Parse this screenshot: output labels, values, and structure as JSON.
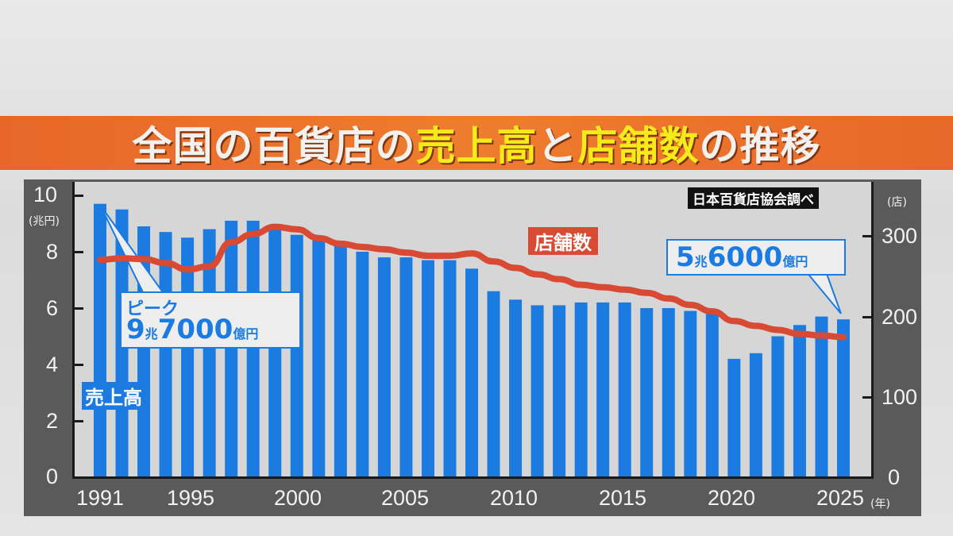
{
  "title": {
    "parts": [
      {
        "text": "全国の百貨店の",
        "color": "white"
      },
      {
        "text": "売上高",
        "color": "yellow"
      },
      {
        "text": "と",
        "color": "white"
      },
      {
        "text": "店舗数",
        "color": "yellow"
      },
      {
        "text": "の推移",
        "color": "white"
      }
    ]
  },
  "source": "日本百貨店協会調べ",
  "axes": {
    "left_unit": "(兆円)",
    "right_unit": "(店)",
    "x_unit": "(年)",
    "left_ticks": [
      "0",
      "2",
      "4",
      "6",
      "8",
      "10"
    ],
    "right_ticks": [
      "0",
      "100",
      "200",
      "300"
    ],
    "x_ticks": [
      "1991",
      "1995",
      "2000",
      "2005",
      "2010",
      "2015",
      "2020",
      "2025"
    ]
  },
  "labels": {
    "sales": "売上高",
    "stores": "店舗数"
  },
  "callouts": {
    "peak_title": "ピーク",
    "peak_num1": "9",
    "peak_unit1": "兆",
    "peak_num2": "7000",
    "peak_unit2": "億円",
    "latest_num1": "5",
    "latest_unit1": "兆",
    "latest_num2": "6000",
    "latest_unit2": "億円"
  },
  "colors": {
    "bar": "#1b7be0",
    "line": "#d84a33",
    "title_band": "#ec772d",
    "title_yellow": "#f5ea1a"
  },
  "chart_data": {
    "type": "bar",
    "title": "全国の百貨店の売上高と店舗数の推移",
    "xlabel": "(年)",
    "ylabel": "売上高 (兆円)",
    "y2label": "店舗数 (店)",
    "ylim": [
      0,
      10
    ],
    "y2lim": [
      0,
      350
    ],
    "grid": false,
    "categories": [
      "1991",
      "1992",
      "1993",
      "1994",
      "1995",
      "1996",
      "1997",
      "1998",
      "1999",
      "2000",
      "2001",
      "2002",
      "2003",
      "2004",
      "2005",
      "2006",
      "2007",
      "2008",
      "2009",
      "2010",
      "2011",
      "2012",
      "2013",
      "2014",
      "2015",
      "2016",
      "2017",
      "2018",
      "2019",
      "2020",
      "2021",
      "2022",
      "2023",
      "2024",
      "2025"
    ],
    "series": [
      {
        "name": "売上高",
        "type": "bar",
        "axis": "left",
        "unit": "兆円",
        "values": [
          9.7,
          9.5,
          8.9,
          8.7,
          8.5,
          8.8,
          9.1,
          9.1,
          8.8,
          8.6,
          8.4,
          8.2,
          8.0,
          7.8,
          7.8,
          7.7,
          7.7,
          7.4,
          6.6,
          6.3,
          6.1,
          6.1,
          6.2,
          6.2,
          6.2,
          6.0,
          6.0,
          5.9,
          5.8,
          4.2,
          4.4,
          5.0,
          5.4,
          5.7,
          5.6
        ]
      },
      {
        "name": "店舗数",
        "type": "line",
        "axis": "right",
        "unit": "店",
        "values": [
          270,
          272,
          271,
          266,
          258,
          262,
          292,
          302,
          311,
          308,
          297,
          290,
          286,
          283,
          279,
          275,
          275,
          278,
          268,
          260,
          252,
          246,
          239,
          236,
          233,
          229,
          222,
          214,
          206,
          194,
          188,
          183,
          178,
          176,
          174
        ]
      }
    ],
    "annotations": [
      {
        "x": "1991",
        "text": "ピーク 9兆7000億円"
      },
      {
        "x": "2025",
        "text": "5兆6000億円"
      },
      {
        "text": "日本百貨店協会調べ"
      }
    ]
  }
}
